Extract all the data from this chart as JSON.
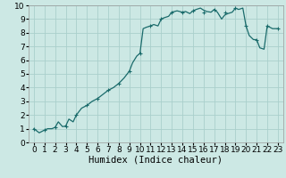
{
  "title": "",
  "xlabel": "Humidex (Indice chaleur)",
  "ylabel": "",
  "xlim": [
    -0.5,
    23.5
  ],
  "ylim": [
    0,
    10
  ],
  "xticks": [
    0,
    1,
    2,
    3,
    4,
    5,
    6,
    7,
    8,
    9,
    10,
    11,
    12,
    13,
    14,
    15,
    16,
    17,
    18,
    19,
    20,
    21,
    22,
    23
  ],
  "yticks": [
    0,
    1,
    2,
    3,
    4,
    5,
    6,
    7,
    8,
    9,
    10
  ],
  "background_color": "#cce8e4",
  "grid_color": "#aacfcc",
  "line_color": "#1a6b6b",
  "marker_color": "#1a6b6b",
  "x": [
    0,
    0.5,
    1,
    1.3,
    1.7,
    2,
    2.3,
    2.7,
    3,
    3.3,
    3.7,
    4,
    4.5,
    5,
    5.5,
    6,
    6.5,
    7,
    7.5,
    8,
    8.5,
    9,
    9.3,
    9.7,
    10,
    10.3,
    10.6,
    11,
    11.3,
    11.7,
    12,
    12.3,
    12.7,
    13,
    13.5,
    14,
    14.3,
    14.7,
    15,
    15.3,
    15.7,
    16,
    16.3,
    16.7,
    17,
    17.3,
    17.7,
    18,
    18.3,
    18.7,
    19,
    19.3,
    19.7,
    20,
    20.3,
    20.7,
    21,
    21.3,
    21.7,
    22,
    22.5,
    23
  ],
  "y": [
    1.0,
    0.7,
    0.9,
    1.0,
    1.0,
    1.1,
    1.5,
    1.15,
    1.2,
    1.7,
    1.5,
    2.0,
    2.5,
    2.7,
    3.0,
    3.2,
    3.5,
    3.8,
    4.0,
    4.3,
    4.7,
    5.2,
    5.8,
    6.3,
    6.5,
    8.3,
    8.4,
    8.5,
    8.6,
    8.5,
    9.0,
    9.1,
    9.2,
    9.5,
    9.6,
    9.5,
    9.55,
    9.4,
    9.6,
    9.7,
    9.8,
    9.65,
    9.55,
    9.5,
    9.7,
    9.5,
    9.0,
    9.3,
    9.4,
    9.5,
    9.8,
    9.7,
    9.8,
    8.5,
    7.8,
    7.5,
    7.5,
    6.9,
    6.8,
    8.5,
    8.3,
    8.3
  ],
  "marker_x": [
    0,
    1,
    2,
    3,
    4,
    5,
    6,
    7,
    8,
    9,
    10,
    11,
    12,
    13,
    14,
    15,
    16,
    17,
    18,
    19,
    20,
    21,
    22,
    23
  ],
  "marker_y": [
    1.0,
    0.9,
    1.1,
    1.2,
    2.0,
    2.7,
    3.2,
    3.8,
    4.3,
    5.2,
    6.5,
    8.5,
    9.0,
    9.5,
    9.5,
    9.6,
    9.5,
    9.7,
    9.5,
    9.8,
    8.5,
    7.5,
    8.5,
    8.3
  ],
  "tick_fontsize": 6.5,
  "xlabel_fontsize": 7.5
}
